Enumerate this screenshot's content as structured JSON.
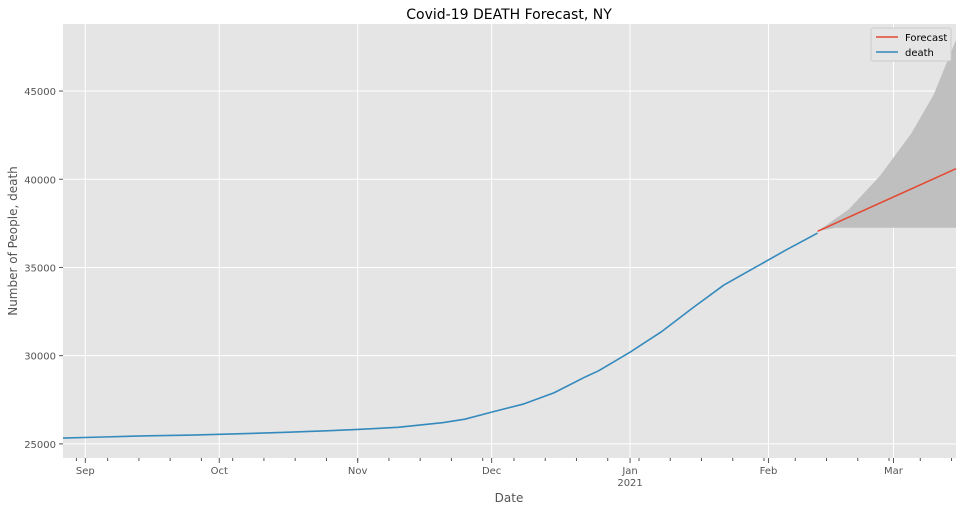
{
  "chart_data": {
    "type": "line",
    "title": "Covid-19 DEATH Forecast, NY",
    "xlabel": "Date",
    "ylabel": "Number of People, death",
    "xlim": [
      "2020-08-27",
      "2021-03-15"
    ],
    "ylim": [
      24200,
      48800
    ],
    "grid": true,
    "legend_placement": "top-right",
    "y_ticks": [
      25000,
      30000,
      35000,
      40000,
      45000
    ],
    "x_ticks": [
      {
        "date": "2020-09-01",
        "label": "Sep",
        "sublabel": ""
      },
      {
        "date": "2020-10-01",
        "label": "Oct",
        "sublabel": ""
      },
      {
        "date": "2020-11-01",
        "label": "Nov",
        "sublabel": ""
      },
      {
        "date": "2020-12-01",
        "label": "Dec",
        "sublabel": ""
      },
      {
        "date": "2021-01-01",
        "label": "Jan",
        "sublabel": "2021"
      },
      {
        "date": "2021-02-01",
        "label": "Feb",
        "sublabel": ""
      },
      {
        "date": "2021-03-01",
        "label": "Mar",
        "sublabel": ""
      }
    ],
    "series": [
      {
        "name": "Forecast",
        "color": "#e24a33",
        "points": [
          [
            "2021-02-12",
            37050
          ],
          [
            "2021-03-15",
            40600
          ]
        ]
      },
      {
        "name": "death",
        "color": "#348abd",
        "points": [
          [
            "2020-08-27",
            25330
          ],
          [
            "2020-09-05",
            25390
          ],
          [
            "2020-09-15",
            25460
          ],
          [
            "2020-09-25",
            25500
          ],
          [
            "2020-10-05",
            25570
          ],
          [
            "2020-10-15",
            25650
          ],
          [
            "2020-10-25",
            25740
          ],
          [
            "2020-11-01",
            25820
          ],
          [
            "2020-11-10",
            25940
          ],
          [
            "2020-11-20",
            26200
          ],
          [
            "2020-11-25",
            26400
          ],
          [
            "2020-12-01",
            26800
          ],
          [
            "2020-12-08",
            27250
          ],
          [
            "2020-12-15",
            27900
          ],
          [
            "2020-12-22",
            28800
          ],
          [
            "2020-12-25",
            29150
          ],
          [
            "2021-01-01",
            30200
          ],
          [
            "2021-01-08",
            31350
          ],
          [
            "2021-01-15",
            32700
          ],
          [
            "2021-01-22",
            34000
          ],
          [
            "2021-01-29",
            35000
          ],
          [
            "2021-02-05",
            36000
          ],
          [
            "2021-02-12",
            36950
          ]
        ]
      }
    ],
    "confidence_band": {
      "color": "#bfbfbf",
      "upper": [
        [
          "2021-02-12",
          37050
        ],
        [
          "2021-02-19",
          38300
        ],
        [
          "2021-02-26",
          40200
        ],
        [
          "2021-03-05",
          42600
        ],
        [
          "2021-03-10",
          44800
        ],
        [
          "2021-03-15",
          47900
        ]
      ],
      "lower": [
        [
          "2021-02-12",
          37050
        ],
        [
          "2021-02-16",
          37250
        ],
        [
          "2021-03-15",
          37250
        ]
      ]
    }
  }
}
